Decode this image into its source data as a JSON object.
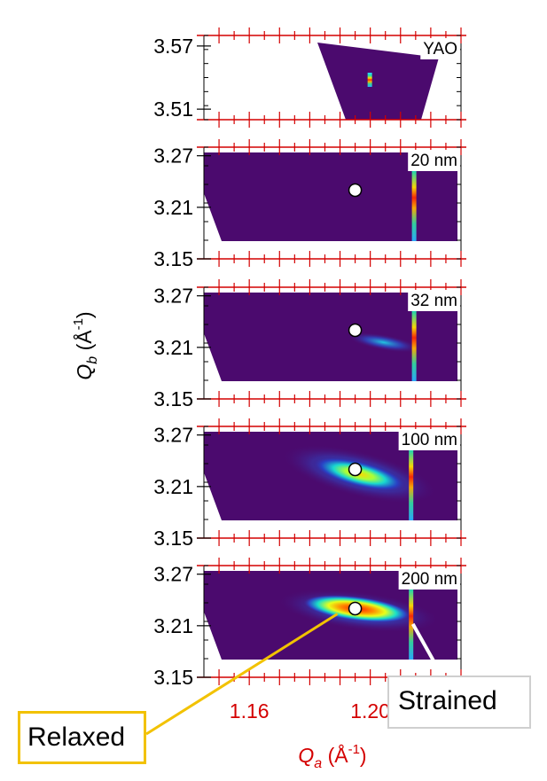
{
  "chart_data": {
    "type": "heatmap",
    "title": "",
    "xlabel": "Q_a (Å^-1)",
    "ylabel": "Q_b (Å^-1)",
    "xlabel_parts": {
      "symbol": "Q",
      "sub": "a",
      "unit_open": " (Å",
      "sup": "-1",
      "unit_close": ")"
    },
    "ylabel_parts": {
      "symbol": "Q",
      "sub": "b",
      "unit_open": " (Å",
      "sup": "-1",
      "unit_close": ")"
    },
    "xlim": [
      1.145,
      1.23
    ],
    "x_ticks": [
      "1.16",
      "1.20"
    ],
    "x_tick_values": [
      1.16,
      1.2
    ],
    "colors": {
      "axis_red": "#d40000",
      "background_purple": "#4b0a6e",
      "relaxed_callout": "#f2c200",
      "strained_callout": "#cfcfcf"
    },
    "panels": [
      {
        "label": "YAO",
        "ylim": [
          3.5,
          3.58
        ],
        "y_ticks": [
          "3.57",
          "3.51"
        ],
        "y_tick_values": [
          3.57,
          3.51
        ],
        "region": "parallelogram",
        "substrate_peak_qa": 1.2,
        "relaxed_marker": null,
        "film_peak_intensity": "none"
      },
      {
        "label": "20 nm",
        "ylim": [
          3.15,
          3.28
        ],
        "y_ticks": [
          "3.27",
          "3.21",
          "3.15"
        ],
        "y_tick_values": [
          3.27,
          3.21,
          3.15
        ],
        "region": "trapezoid",
        "strained_peak_qa": 1.2145,
        "relaxed_marker": {
          "qa": 1.195,
          "qb": 3.23
        },
        "film_peak_intensity": "none"
      },
      {
        "label": "32 nm",
        "ylim": [
          3.15,
          3.28
        ],
        "y_ticks": [
          "3.27",
          "3.21",
          "3.15"
        ],
        "y_tick_values": [
          3.27,
          3.21,
          3.15
        ],
        "region": "trapezoid",
        "strained_peak_qa": 1.2145,
        "relaxed_marker": {
          "qa": 1.195,
          "qb": 3.23
        },
        "film_peak_intensity": "weak"
      },
      {
        "label": "100 nm",
        "ylim": [
          3.15,
          3.28
        ],
        "y_ticks": [
          "3.27",
          "3.21",
          "3.15"
        ],
        "y_tick_values": [
          3.27,
          3.21,
          3.15
        ],
        "region": "trapezoid",
        "strained_peak_qa": 1.2135,
        "relaxed_marker": {
          "qa": 1.195,
          "qb": 3.23
        },
        "film_peak_intensity": "medium"
      },
      {
        "label": "200 nm",
        "ylim": [
          3.15,
          3.28
        ],
        "y_ticks": [
          "3.27",
          "3.21",
          "3.15"
        ],
        "y_tick_values": [
          3.27,
          3.21,
          3.15
        ],
        "region": "trapezoid",
        "strained_peak_qa": 1.2135,
        "relaxed_marker": {
          "qa": 1.195,
          "qb": 3.23
        },
        "film_peak_intensity": "strong"
      }
    ],
    "annotations": [
      {
        "text": "Relaxed",
        "points_to": {
          "panel": "200 nm",
          "qa": 1.195,
          "qb": 3.23
        }
      },
      {
        "text": "Strained",
        "points_to": {
          "panel": "200 nm",
          "qa": 1.2135,
          "qb": 3.21
        }
      }
    ]
  }
}
